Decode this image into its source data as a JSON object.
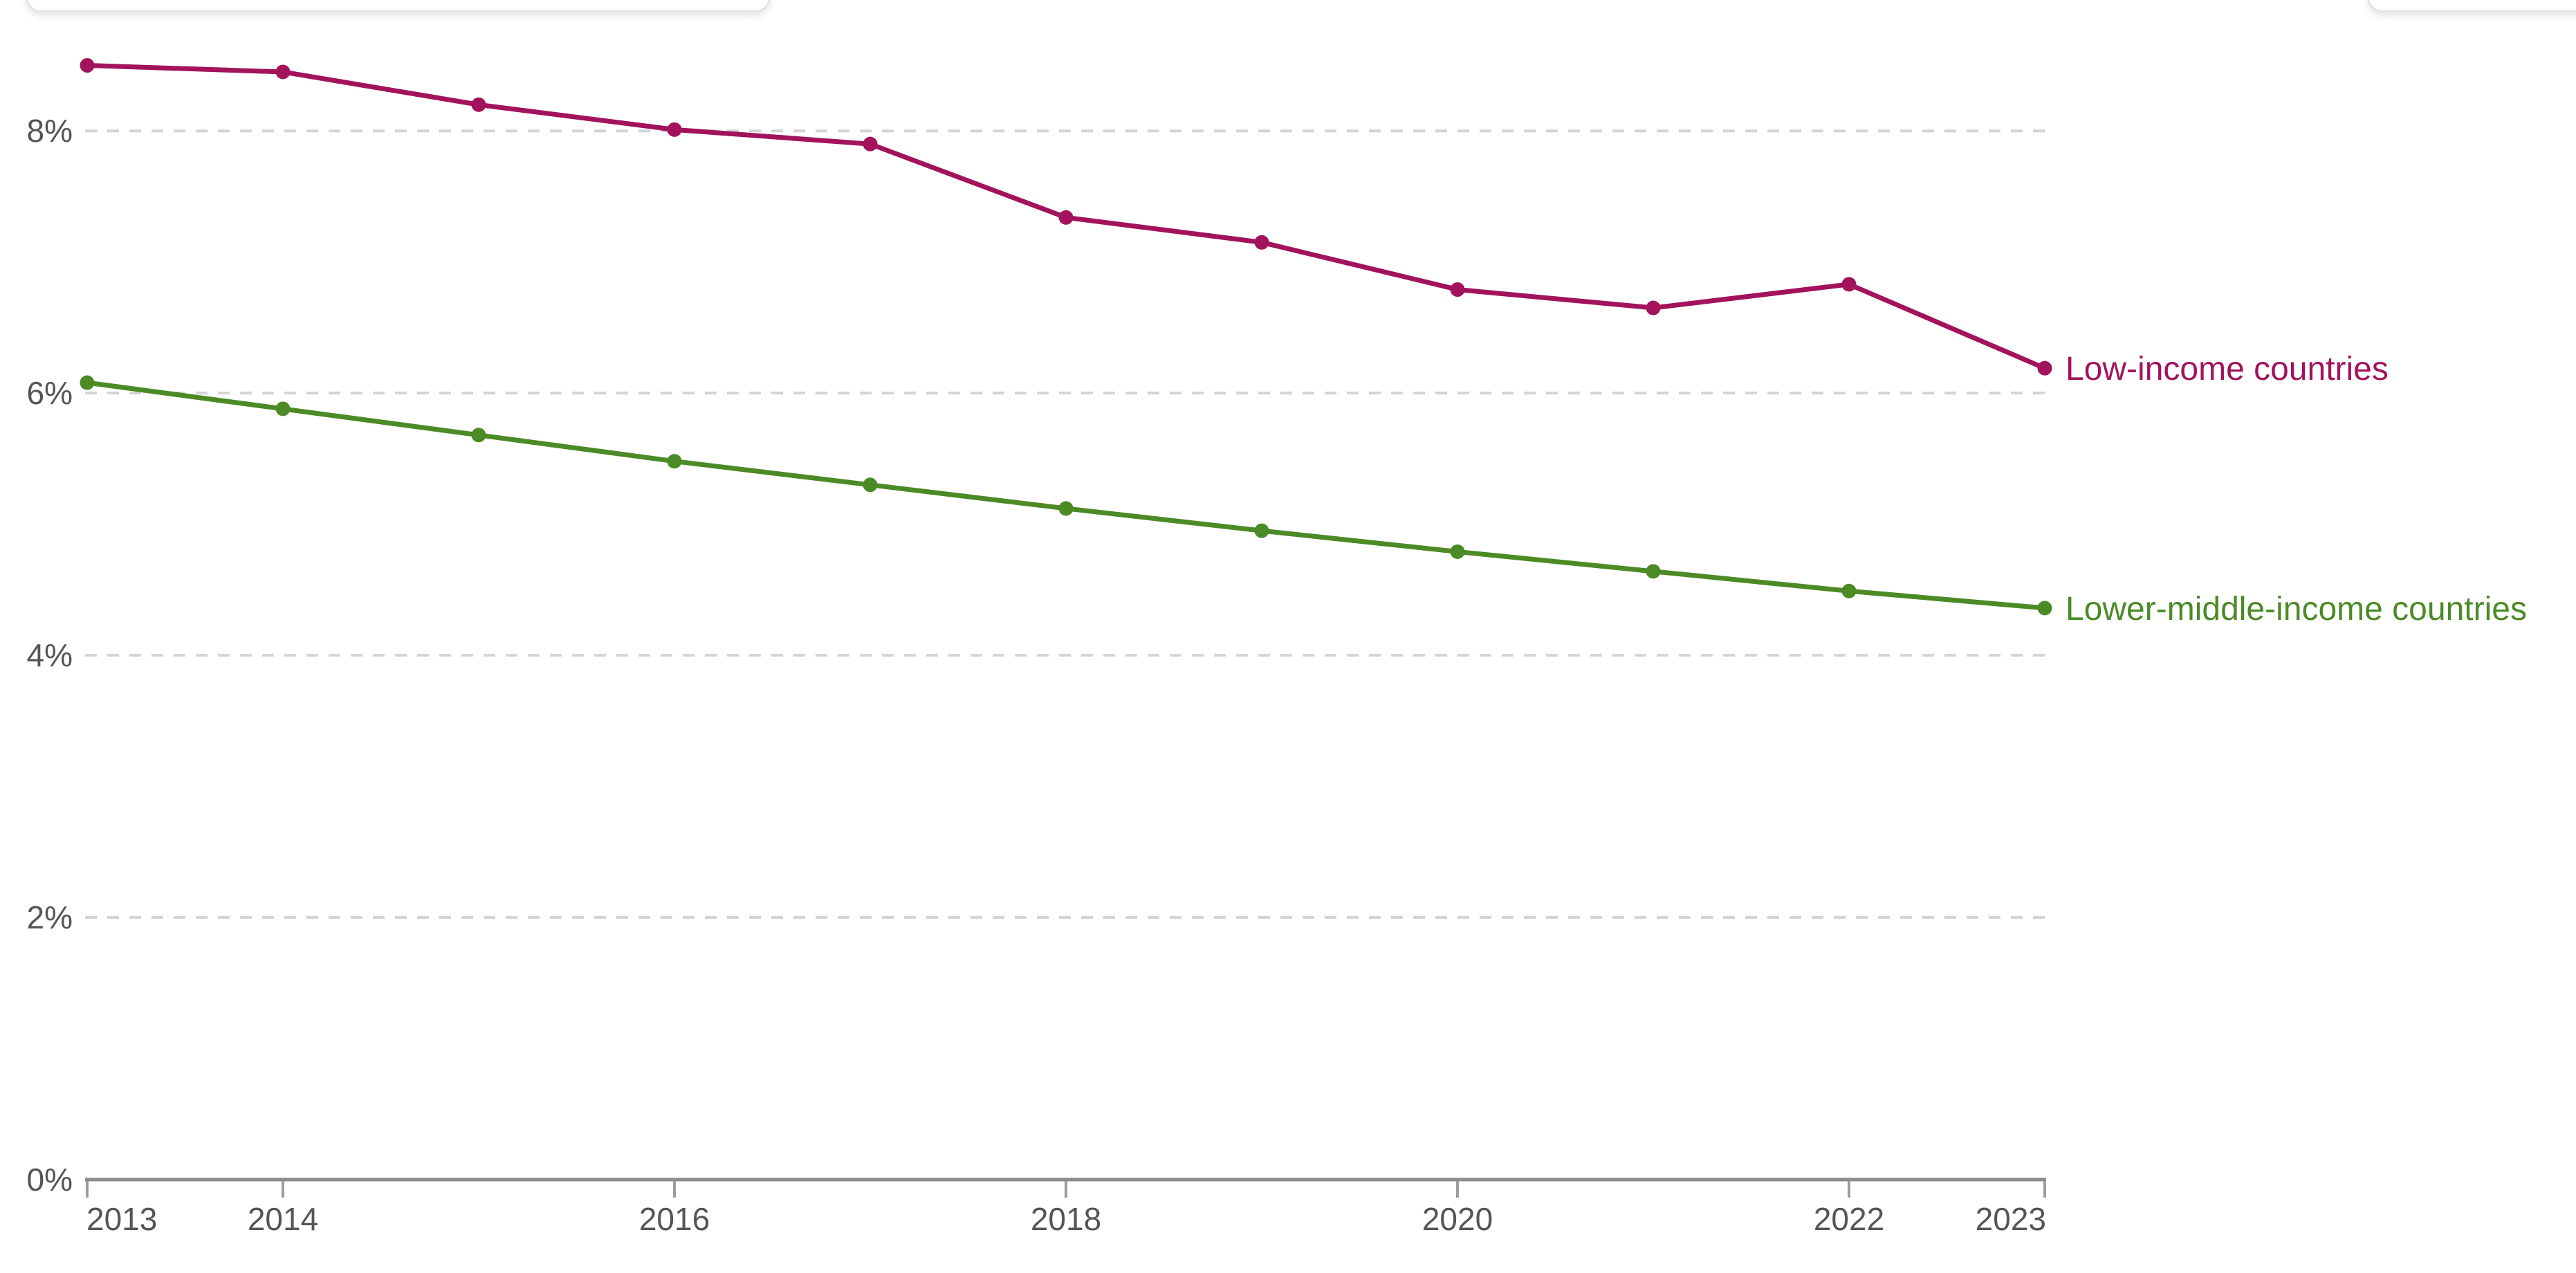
{
  "page": {
    "background": "#ffffff"
  },
  "top_edge_panels": {
    "left_panel_visible": true,
    "right_panel_visible": true,
    "note": "only bottom edges of two rounded white panels are visible, no text shown"
  },
  "chart_data": {
    "type": "line",
    "x": [
      2013,
      2014,
      2015,
      2016,
      2017,
      2018,
      2019,
      2020,
      2021,
      2022,
      2023
    ],
    "series": [
      {
        "name": "Low-income countries",
        "color": "#A2135C",
        "values": [
          8.5,
          8.45,
          8.2,
          8.01,
          7.9,
          7.34,
          7.15,
          6.79,
          6.65,
          6.83,
          6.19
        ]
      },
      {
        "name": "Lower-middle-income countries",
        "color": "#4C8A26",
        "values": [
          6.08,
          5.88,
          5.68,
          5.48,
          5.3,
          5.12,
          4.95,
          4.79,
          4.64,
          4.49,
          4.36
        ]
      }
    ],
    "title": "",
    "xlabel": "",
    "ylabel": "",
    "ylim": [
      0,
      8.8
    ],
    "yticks": [
      0,
      2,
      4,
      6,
      8
    ],
    "ytick_labels": [
      "0%",
      "2%",
      "4%",
      "6%",
      "8%"
    ],
    "xticks": [
      2013,
      2014,
      2016,
      2018,
      2020,
      2022,
      2023
    ],
    "xtick_labels": [
      "2013",
      "2014",
      "2016",
      "2018",
      "2020",
      "2022",
      "2023"
    ],
    "grid": "horizontal dashed gridlines at 2%, 4%, 6%, 8%",
    "legend_position": "labels at right end of each line",
    "marker": "filled circles at yearly data points"
  }
}
